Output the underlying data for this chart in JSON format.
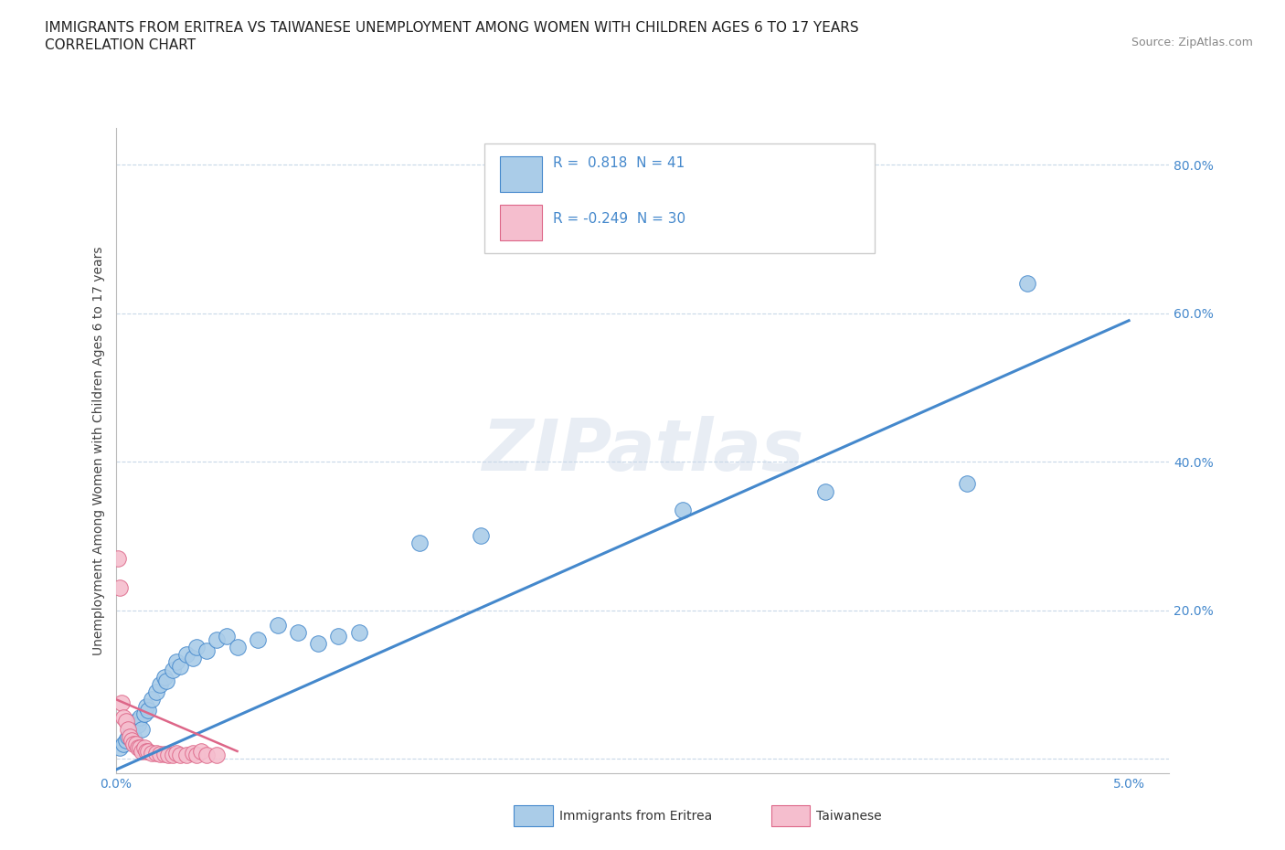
{
  "title_line1": "IMMIGRANTS FROM ERITREA VS TAIWANESE UNEMPLOYMENT AMONG WOMEN WITH CHILDREN AGES 6 TO 17 YEARS",
  "title_line2": "CORRELATION CHART",
  "source_text": "Source: ZipAtlas.com",
  "ylabel": "Unemployment Among Women with Children Ages 6 to 17 years",
  "xlim": [
    0.0,
    5.2
  ],
  "ylim": [
    -2.0,
    85.0
  ],
  "ytick_vals": [
    0.0,
    20.0,
    40.0,
    60.0,
    80.0
  ],
  "xtick_vals": [
    0.0,
    1.0,
    2.0,
    3.0,
    4.0,
    5.0
  ],
  "legend_label1": "Immigrants from Eritrea",
  "legend_label2": "Taiwanese",
  "watermark": "ZIPatlas",
  "blue_color": "#aacce8",
  "pink_color": "#f5bece",
  "blue_line_color": "#4488cc",
  "pink_line_color": "#dd6688",
  "blue_scatter": [
    [
      0.02,
      1.5
    ],
    [
      0.04,
      2.0
    ],
    [
      0.05,
      2.5
    ],
    [
      0.06,
      3.0
    ],
    [
      0.07,
      3.5
    ],
    [
      0.08,
      4.0
    ],
    [
      0.09,
      3.0
    ],
    [
      0.1,
      5.0
    ],
    [
      0.11,
      4.5
    ],
    [
      0.12,
      5.5
    ],
    [
      0.13,
      4.0
    ],
    [
      0.14,
      6.0
    ],
    [
      0.15,
      7.0
    ],
    [
      0.16,
      6.5
    ],
    [
      0.18,
      8.0
    ],
    [
      0.2,
      9.0
    ],
    [
      0.22,
      10.0
    ],
    [
      0.24,
      11.0
    ],
    [
      0.25,
      10.5
    ],
    [
      0.28,
      12.0
    ],
    [
      0.3,
      13.0
    ],
    [
      0.32,
      12.5
    ],
    [
      0.35,
      14.0
    ],
    [
      0.38,
      13.5
    ],
    [
      0.4,
      15.0
    ],
    [
      0.45,
      14.5
    ],
    [
      0.5,
      16.0
    ],
    [
      0.55,
      16.5
    ],
    [
      0.6,
      15.0
    ],
    [
      0.7,
      16.0
    ],
    [
      0.8,
      18.0
    ],
    [
      0.9,
      17.0
    ],
    [
      1.0,
      15.5
    ],
    [
      1.1,
      16.5
    ],
    [
      1.2,
      17.0
    ],
    [
      1.5,
      29.0
    ],
    [
      1.8,
      30.0
    ],
    [
      2.8,
      33.5
    ],
    [
      3.5,
      36.0
    ],
    [
      4.2,
      37.0
    ],
    [
      4.5,
      64.0
    ]
  ],
  "pink_scatter": [
    [
      0.01,
      27.0
    ],
    [
      0.02,
      23.0
    ],
    [
      0.03,
      7.5
    ],
    [
      0.04,
      5.5
    ],
    [
      0.05,
      5.0
    ],
    [
      0.06,
      4.0
    ],
    [
      0.07,
      3.0
    ],
    [
      0.08,
      2.5
    ],
    [
      0.09,
      2.0
    ],
    [
      0.1,
      2.0
    ],
    [
      0.11,
      1.5
    ],
    [
      0.12,
      1.5
    ],
    [
      0.13,
      1.0
    ],
    [
      0.14,
      1.5
    ],
    [
      0.15,
      1.0
    ],
    [
      0.16,
      1.0
    ],
    [
      0.18,
      0.8
    ],
    [
      0.2,
      0.8
    ],
    [
      0.22,
      0.6
    ],
    [
      0.24,
      0.6
    ],
    [
      0.26,
      0.5
    ],
    [
      0.28,
      0.5
    ],
    [
      0.3,
      0.8
    ],
    [
      0.32,
      0.5
    ],
    [
      0.35,
      0.5
    ],
    [
      0.38,
      0.8
    ],
    [
      0.4,
      0.5
    ],
    [
      0.42,
      1.0
    ],
    [
      0.45,
      0.5
    ],
    [
      0.5,
      0.5
    ]
  ],
  "blue_regline_x": [
    0.0,
    5.0
  ],
  "blue_regline_y": [
    -1.5,
    59.0
  ],
  "pink_regline_x": [
    0.0,
    0.6
  ],
  "pink_regline_y": [
    8.0,
    1.0
  ],
  "title_fontsize": 11,
  "axis_label_fontsize": 10,
  "tick_fontsize": 10,
  "r1_val": "0.818",
  "r2_val": "-0.249",
  "n1_val": "41",
  "n2_val": "30"
}
